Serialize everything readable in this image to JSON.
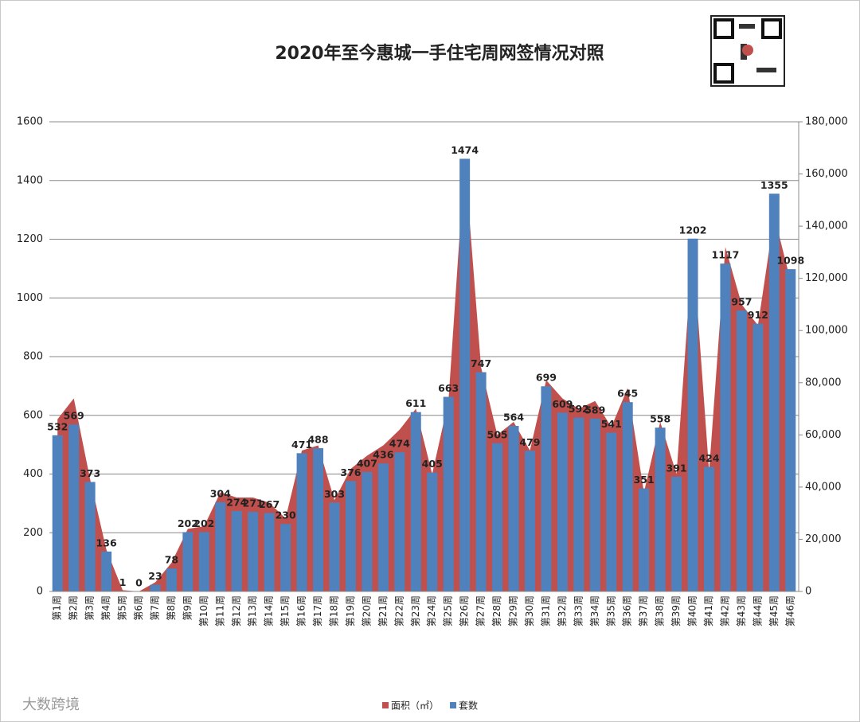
{
  "chart_data": {
    "type": "bar",
    "title": "2020年至今惠城一手住宅周网签情况对照",
    "categories": [
      "第1周",
      "第2周",
      "第3周",
      "第4周",
      "第5周",
      "第6周",
      "第7周",
      "第8周",
      "第9周",
      "第10周",
      "第11周",
      "第12周",
      "第13周",
      "第14周",
      "第15周",
      "第16周",
      "第17周",
      "第18周",
      "第19周",
      "第20周",
      "第21周",
      "第22周",
      "第23周",
      "第24周",
      "第25周",
      "第26周",
      "第27周",
      "第28周",
      "第29周",
      "第30周",
      "第31周",
      "第32周",
      "第33周",
      "第34周",
      "第35周",
      "第36周",
      "第37周",
      "第38周",
      "第39周",
      "第40周",
      "第41周",
      "第42周",
      "第43周",
      "第44周",
      "第45周",
      "第46周"
    ],
    "series": [
      {
        "name": "面积（㎡）",
        "type": "area",
        "axis": "y2",
        "color": "#c0504d",
        "values": [
          66000,
          74000,
          43000,
          16000,
          500,
          0,
          3500,
          11000,
          24000,
          25000,
          38000,
          36000,
          36000,
          34000,
          28000,
          54000,
          56000,
          35000,
          47000,
          52000,
          56000,
          62000,
          70000,
          45000,
          73000,
          166000,
          86000,
          60000,
          65000,
          54000,
          81000,
          74000,
          70000,
          73000,
          63000,
          78000,
          38000,
          65000,
          45000,
          133000,
          46000,
          132000,
          110000,
          102000,
          144000,
          119000
        ]
      },
      {
        "name": "套数",
        "type": "bar",
        "color": "#4f81bd",
        "values": [
          532,
          569,
          373,
          136,
          1,
          0,
          23,
          78,
          202,
          202,
          304,
          274,
          271,
          267,
          230,
          471,
          488,
          303,
          376,
          407,
          436,
          474,
          611,
          405,
          663,
          1474,
          747,
          505,
          564,
          479,
          699,
          609,
          592,
          589,
          541,
          645,
          351,
          558,
          391,
          1202,
          424,
          1117,
          957,
          912,
          1355,
          1098
        ]
      }
    ],
    "ylim": [
      0,
      1600
    ],
    "yticks": [
      0,
      200,
      400,
      600,
      800,
      1000,
      1200,
      1400,
      1600
    ],
    "y2lim": [
      0,
      180000
    ],
    "y2ticks": [
      0,
      {
        "value": 20000,
        "label": "20,000"
      },
      {
        "value": 40000,
        "label": "40,000"
      },
      {
        "value": 60000,
        "label": "60,000"
      },
      {
        "value": 80000,
        "label": "80,000"
      },
      {
        "value": 100000,
        "label": "100,000"
      },
      {
        "value": 120000,
        "label": "120,000"
      },
      {
        "value": 140000,
        "label": "140,000"
      },
      {
        "value": 160000,
        "label": "160,000"
      },
      {
        "value": 180000,
        "label": "180,000"
      }
    ],
    "grid": true,
    "legend": "bottom",
    "annotations": [
      "大数跨境"
    ]
  }
}
